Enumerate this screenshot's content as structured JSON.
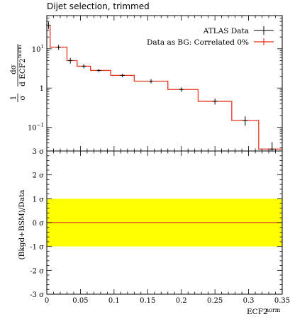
{
  "chart_data": {
    "title": "Dijet selection, trimmed",
    "type": "line",
    "top_panel": {
      "ylabel_parts": {
        "frac_num": "1",
        "frac_den": "σ",
        "dnum": "dσ",
        "dden": "d ECF2",
        "sup": "norm"
      },
      "yscale": "log",
      "ylim": [
        0.025,
        70
      ],
      "yticks": [
        0.1,
        1,
        10
      ],
      "ytick_labels": [
        {
          "base": "10",
          "exp": "−1"
        },
        {
          "base": "1",
          "exp": ""
        },
        {
          "base": "10",
          "exp": "1"
        }
      ],
      "legend_position": "top-right",
      "series": [
        {
          "name": "ATLAS Data",
          "style": "points",
          "color": "#000000",
          "points": [
            {
              "x": 0.0025,
              "y": 40,
              "err": 8
            },
            {
              "x": 0.0175,
              "y": 11,
              "err": 1.5
            },
            {
              "x": 0.035,
              "y": 5.0,
              "err": 0.8
            },
            {
              "x": 0.055,
              "y": 3.6,
              "err": 0.45
            },
            {
              "x": 0.0775,
              "y": 2.8,
              "err": 0.25
            },
            {
              "x": 0.1125,
              "y": 2.1,
              "err": 0.2
            },
            {
              "x": 0.155,
              "y": 1.5,
              "err": 0.18
            },
            {
              "x": 0.2,
              "y": 0.92,
              "err": 0.12
            },
            {
              "x": 0.25,
              "y": 0.46,
              "err": 0.08
            },
            {
              "x": 0.295,
              "y": 0.15,
              "err": 0.04
            },
            {
              "x": 0.335,
              "y": 0.028,
              "err": 0.014
            }
          ]
        },
        {
          "name": "Data as BG: Correlated 0%",
          "style": "step",
          "color": "#e8361f",
          "edges": [
            0,
            0.005,
            0.03,
            0.045,
            0.065,
            0.095,
            0.13,
            0.18,
            0.225,
            0.275,
            0.315,
            0.35
          ],
          "values": [
            40,
            11,
            5.0,
            3.6,
            2.8,
            2.1,
            1.5,
            0.92,
            0.46,
            0.15,
            0.028
          ]
        }
      ]
    },
    "bottom_panel": {
      "ylabel": "(Bkgd+BSM)/Data",
      "ylim": [
        -3,
        3
      ],
      "ytick_labels": [
        "-3 σ",
        "-2 σ",
        "-1 σ",
        "0 σ",
        "1 σ",
        "2 σ",
        "3 σ"
      ],
      "band": {
        "from": -1,
        "to": 1,
        "color": "#ffff00"
      },
      "line": {
        "y": 0,
        "color": "#e8361f"
      }
    },
    "xlabel": "ECF2",
    "xlabel_sup": "norm",
    "xlim": [
      0,
      0.35
    ],
    "xticks": [
      0,
      0.05,
      0.1,
      0.15,
      0.2,
      0.25,
      0.3,
      0.35
    ],
    "xtick_labels": [
      "0",
      "0.05",
      "0.1",
      "0.15",
      "0.2",
      "0.25",
      "0.3",
      "0.35"
    ]
  }
}
